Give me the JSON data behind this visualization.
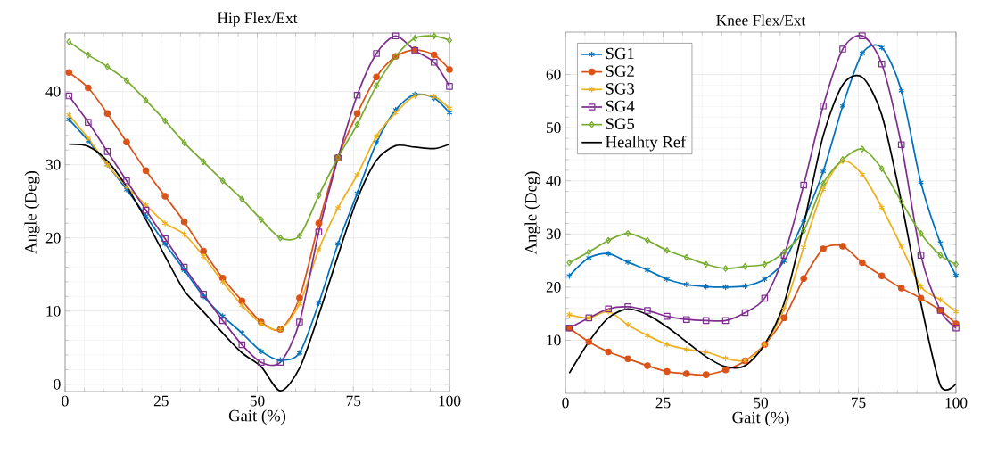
{
  "chart_data": [
    {
      "type": "line",
      "title": "Hip Flex/Ext",
      "xlabel": "Gait (%)",
      "ylabel": "Angle (Deg)",
      "x": [
        1,
        6,
        11,
        16,
        21,
        26,
        31,
        36,
        41,
        46,
        51,
        56,
        61,
        66,
        71,
        76,
        81,
        86,
        91,
        96,
        100
      ],
      "series": [
        {
          "color": "#0072bd",
          "marker": "cross",
          "values": [
            36.2,
            33.3,
            30,
            26.6,
            23,
            19.2,
            15.6,
            12,
            9.3,
            7,
            4.5,
            3.3,
            4.3,
            11.1,
            19.2,
            26.1,
            33,
            37.5,
            39.6,
            39.1,
            37.1
          ]
        },
        {
          "color": "#d95319",
          "marker": "circle",
          "values": [
            42.6,
            40.5,
            37,
            33.1,
            29.2,
            25.7,
            22.2,
            18.2,
            14.5,
            11.4,
            8.5,
            7.5,
            11.8,
            22,
            31,
            37,
            42,
            44.8,
            45.7,
            45,
            43
          ]
        },
        {
          "color": "#edb120",
          "marker": "cross",
          "values": [
            36.8,
            33.6,
            30,
            27,
            24.5,
            22,
            20.5,
            17.5,
            14,
            10.8,
            8.3,
            7.5,
            11,
            18.4,
            24.1,
            28.6,
            33.9,
            37.1,
            39.4,
            39.3,
            37.7
          ]
        },
        {
          "color": "#7e2f8e",
          "marker": "square",
          "values": [
            39.4,
            35.8,
            31.8,
            27.8,
            23.8,
            19.9,
            16,
            12.3,
            8.7,
            5.4,
            3,
            3,
            8.5,
            20.8,
            30.9,
            39.5,
            45.2,
            47.6,
            45.6,
            44,
            40.7
          ]
        },
        {
          "color": "#77ac30",
          "marker": "diamond",
          "values": [
            46.8,
            45,
            43.4,
            41.5,
            38.8,
            36,
            33,
            30.4,
            27.8,
            25.3,
            22.5,
            20,
            20.3,
            25.8,
            31,
            35.5,
            40.8,
            44.8,
            47.3,
            47.6,
            47
          ]
        },
        {
          "color": "#000000",
          "marker": "none",
          "values": [
            32.8,
            32.5,
            30.5,
            27,
            22.5,
            17.5,
            12.8,
            9.9,
            7,
            4.3,
            2.4,
            -0.9,
            2.2,
            9.5,
            17.6,
            25.3,
            30.6,
            32.6,
            32.4,
            32.2,
            32.8
          ]
        }
      ],
      "xlim": [
        0,
        100
      ],
      "ylim": [
        -1,
        48
      ],
      "xticks": [
        0,
        25,
        50,
        75,
        100
      ],
      "yticks": [
        0,
        10,
        20,
        30,
        40
      ],
      "grid": true
    },
    {
      "type": "line",
      "title": "Knee Flex/Ext",
      "xlabel": "Gait (%)",
      "ylabel": "Angle (Deg)",
      "x": [
        1,
        6,
        11,
        16,
        21,
        26,
        31,
        36,
        41,
        46,
        51,
        56,
        61,
        66,
        71,
        76,
        81,
        86,
        91,
        96,
        100
      ],
      "series": [
        {
          "name": "SG1",
          "color": "#0072bd",
          "marker": "cross",
          "values": [
            22.1,
            25.5,
            26.3,
            24.7,
            23.2,
            21.5,
            20.5,
            20.1,
            20,
            20.2,
            21.5,
            24.9,
            32.6,
            41.8,
            54.1,
            64,
            65.1,
            57,
            39.7,
            28.3,
            22.2
          ]
        },
        {
          "name": "SG2",
          "color": "#d95319",
          "marker": "circle",
          "values": [
            12.3,
            9.7,
            7.8,
            6.5,
            5.2,
            4.1,
            3.7,
            3.5,
            4.4,
            6.1,
            9.2,
            14.2,
            21.6,
            27.2,
            27.7,
            24.6,
            22.1,
            19.8,
            17.9,
            15.6,
            13.1
          ]
        },
        {
          "name": "SG3",
          "color": "#edb120",
          "marker": "cross",
          "values": [
            14.8,
            14.2,
            15.4,
            12.9,
            10.9,
            9.2,
            8.3,
            7.8,
            6.6,
            6.2,
            9.2,
            15.9,
            27.5,
            38.4,
            43.7,
            41.2,
            35,
            27.7,
            20.1,
            17.6,
            15.4
          ]
        },
        {
          "name": "SG4",
          "color": "#7e2f8e",
          "marker": "square",
          "values": [
            12.3,
            14.2,
            15.9,
            16.3,
            15.6,
            14.5,
            13.9,
            13.7,
            13.7,
            15.2,
            17.9,
            26,
            39.2,
            54.1,
            64.8,
            67.3,
            62,
            46.8,
            26,
            15.6,
            12.3
          ]
        },
        {
          "name": "SG5",
          "color": "#77ac30",
          "marker": "diamond",
          "values": [
            24.6,
            26.6,
            28.8,
            30.1,
            28.8,
            26.9,
            25.6,
            24.3,
            23.5,
            23.9,
            24.3,
            26.6,
            30.6,
            39.5,
            44,
            46,
            42.3,
            36.1,
            30.1,
            26,
            24.3
          ]
        },
        {
          "name": "Healhty Ref",
          "color": "#000000",
          "marker": "none",
          "values": [
            3.8,
            9.7,
            14.2,
            15.9,
            14.8,
            12.5,
            9.7,
            6.9,
            5,
            5.2,
            9.2,
            17,
            31.7,
            48.5,
            58.1,
            59.5,
            52.4,
            36.1,
            17,
            1.5,
            1.8
          ]
        }
      ],
      "xlim": [
        0,
        100
      ],
      "ylim": [
        0,
        68
      ],
      "xticks": [
        0,
        25,
        50,
        75,
        100
      ],
      "yticks": [
        10,
        20,
        30,
        40,
        50,
        60
      ],
      "grid": true,
      "legend": "top left"
    }
  ]
}
